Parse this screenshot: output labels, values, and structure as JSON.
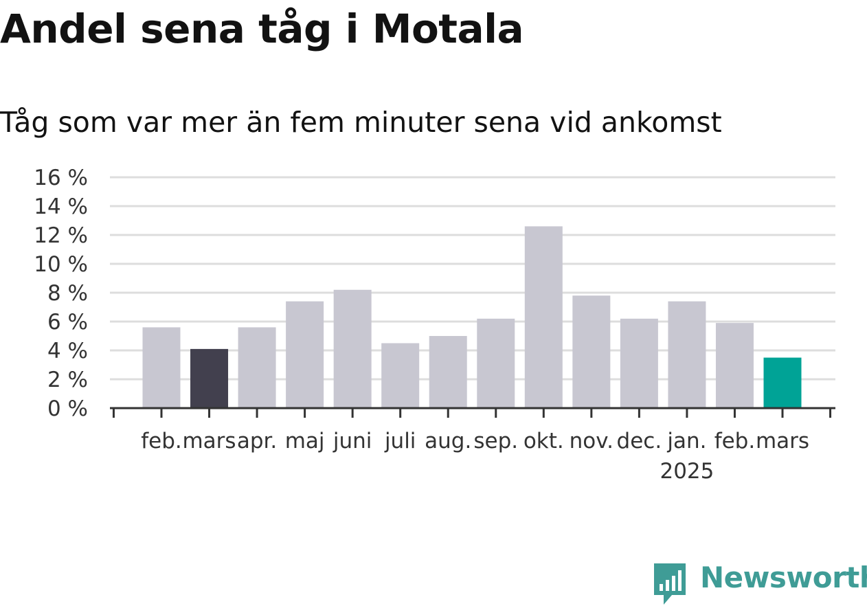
{
  "title": "Andel sena tåg i Motala",
  "subtitle": "Tåg som var mer än fem minuter sena vid ankomst",
  "brand": {
    "name": "Newsworthy",
    "icon": "newsworthy-logo-icon",
    "color": "#3f9c96"
  },
  "colors": {
    "default": "#c8c7d1",
    "last_year": "#42404e",
    "latest": "#00a396",
    "grid": "#dddddd",
    "axis": "#333333"
  },
  "chart_data": {
    "type": "bar",
    "title": "Andel sena tåg i Motala",
    "subtitle": "Tåg som var mer än fem minuter sena vid ankomst",
    "categories": [
      "feb.",
      "mars",
      "apr.",
      "maj",
      "juni",
      "juli",
      "aug.",
      "sep.",
      "okt.",
      "nov.",
      "dec.",
      "jan.",
      "feb.",
      "mars"
    ],
    "category_sublabels": [
      "",
      "",
      "",
      "",
      "",
      "",
      "",
      "",
      "",
      "",
      "",
      "2025",
      "",
      ""
    ],
    "values": [
      5.6,
      4.1,
      5.6,
      7.4,
      8.2,
      4.5,
      5.0,
      6.2,
      12.6,
      7.8,
      6.2,
      7.4,
      5.9,
      3.5
    ],
    "highlight": {
      "1": "last_year",
      "13": "latest"
    },
    "ylim": [
      0,
      16
    ],
    "yticks": [
      0,
      2,
      4,
      6,
      8,
      10,
      12,
      14,
      16
    ],
    "ytick_labels": [
      "0 %",
      "2 %",
      "4 %",
      "6 %",
      "8 %",
      "10 %",
      "12 %",
      "14 %",
      "16 %"
    ],
    "xlabel": "",
    "ylabel": "",
    "grid": true,
    "legend": "none"
  }
}
